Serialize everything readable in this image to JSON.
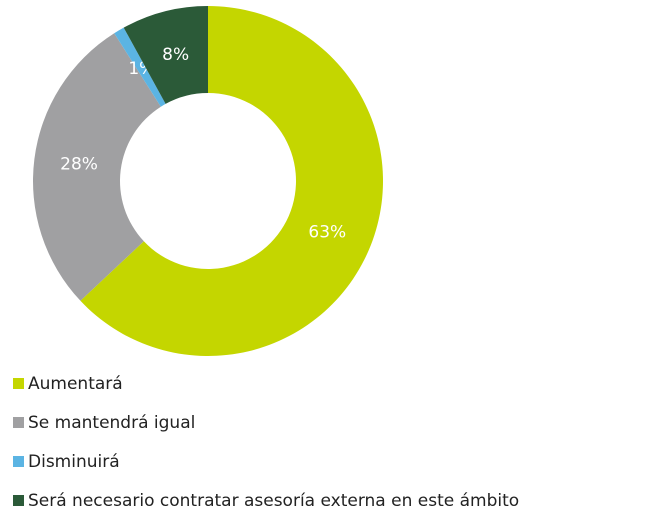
{
  "chart_data": {
    "type": "donut",
    "categories": [
      "Aumentará",
      "Se mantendrá igual",
      "Disminuirá",
      "Será necesario contratar asesoría externa en este ámbito"
    ],
    "values": [
      63,
      28,
      1,
      8
    ],
    "value_labels": [
      "63%",
      "28%",
      "1%",
      "8%"
    ],
    "colors": [
      "#c4d600",
      "#a0a0a2",
      "#5bb4e3",
      "#2b5a38"
    ],
    "legend": "bottom-left"
  }
}
